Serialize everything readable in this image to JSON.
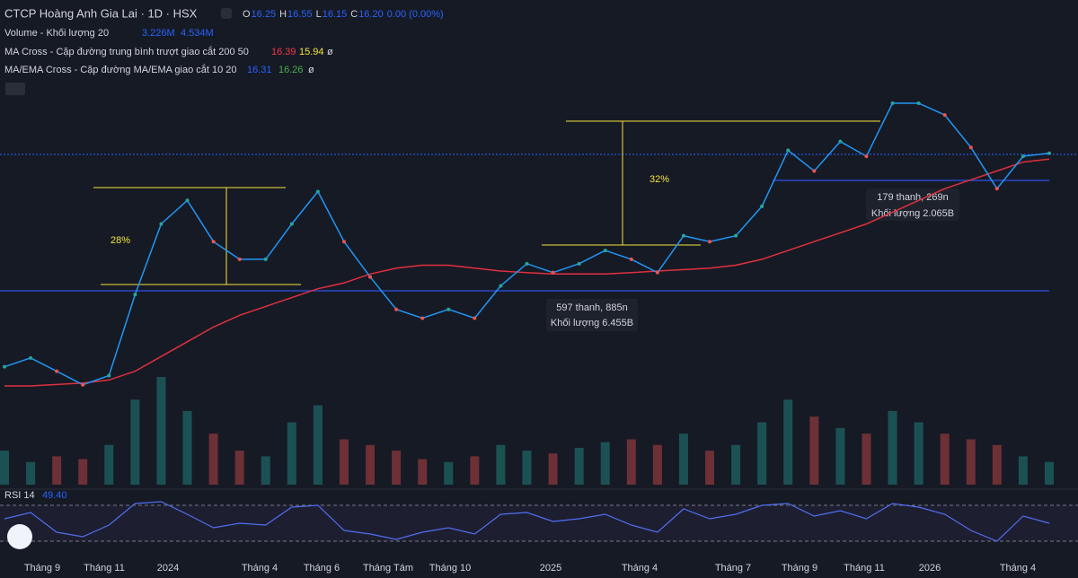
{
  "legend": {
    "title": "CTCP Hoàng Anh Gia Lai · 1D · HSX",
    "ohlc": [
      {
        "label": "O",
        "value": "16.25"
      },
      {
        "label": "H",
        "value": "16.55"
      },
      {
        "label": "L",
        "value": "16.15"
      },
      {
        "label": "C",
        "value": "16.20"
      }
    ],
    "change": "0.00 (0.00%)",
    "volume": {
      "name": "Volume - Khối lượng 20",
      "values": [
        "3.226M",
        "4.534M"
      ]
    },
    "ma_cross": {
      "name": "MA Cross - Cặp đường trung bình trượt giao cắt 200 50",
      "values": [
        "16.39",
        "15.94"
      ],
      "symbol": "ø"
    },
    "ema_cross": {
      "name": "MA/EMA Cross - Cặp đường MA/EMA giao cắt 10 20",
      "values": [
        "16.31",
        "16.26"
      ],
      "symbol": "ø"
    }
  },
  "chart": {
    "price": [
      8.95,
      9.25,
      8.8,
      8.34,
      8.65,
      11.4,
      13.8,
      14.6,
      13.2,
      12.6,
      12.6,
      13.8,
      14.9,
      13.2,
      12.0,
      10.9,
      10.6,
      10.9,
      10.6,
      11.7,
      12.45,
      12.15,
      12.45,
      12.9,
      12.6,
      12.15,
      13.4,
      13.2,
      13.4,
      14.4,
      16.3,
      15.6,
      16.6,
      16.1,
      17.9,
      17.9,
      17.5,
      16.4,
      15.0,
      16.1,
      16.2
    ],
    "ma200": [
      8.3,
      8.3,
      8.35,
      8.4,
      8.5,
      8.8,
      9.3,
      9.8,
      10.3,
      10.7,
      11.0,
      11.3,
      11.6,
      11.8,
      12.1,
      12.3,
      12.4,
      12.4,
      12.3,
      12.2,
      12.15,
      12.1,
      12.1,
      12.1,
      12.15,
      12.2,
      12.25,
      12.3,
      12.4,
      12.6,
      12.9,
      13.2,
      13.5,
      13.8,
      14.2,
      14.6,
      15.0,
      15.3,
      15.6,
      15.9,
      16.0
    ],
    "volume": [
      12,
      8,
      10,
      9,
      14,
      30,
      38,
      26,
      18,
      12,
      10,
      22,
      28,
      16,
      14,
      12,
      9,
      8,
      10,
      14,
      12,
      11,
      13,
      15,
      16,
      14,
      18,
      12,
      14,
      22,
      30,
      24,
      20,
      18,
      26,
      22,
      18,
      16,
      14,
      10,
      8
    ],
    "rsi": [
      55,
      62,
      40,
      35,
      48,
      72,
      74,
      60,
      45,
      50,
      48,
      68,
      70,
      42,
      38,
      32,
      40,
      45,
      38,
      60,
      62,
      52,
      55,
      60,
      48,
      40,
      66,
      55,
      60,
      70,
      72,
      58,
      64,
      55,
      72,
      68,
      60,
      42,
      30,
      58,
      50
    ],
    "rsi_levels": [
      30,
      70
    ],
    "rsi_label": "RSI 14",
    "rsi_value": "49.40"
  },
  "annotations": {
    "pct_1": "28%",
    "pct_2": "32%",
    "range_1": [
      "597 thanh, 885n",
      "Khối lượng 6.455B"
    ],
    "range_2": [
      "179 thanh, 269n",
      "Khối lượng 2.065B"
    ]
  },
  "time_axis": [
    "Tháng 9",
    "Tháng 11",
    "2024",
    "Tháng 4",
    "Tháng 6",
    "Tháng Tám",
    "Tháng 10",
    "2025",
    "Tháng 4",
    "Tháng 7",
    "Tháng 9",
    "Tháng 11",
    "2026",
    "Tháng 4"
  ]
}
